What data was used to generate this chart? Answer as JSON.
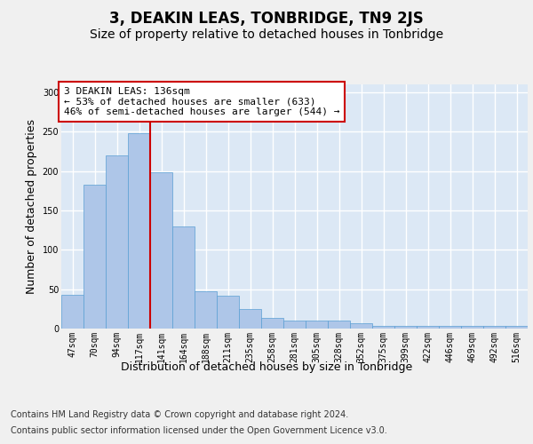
{
  "title": "3, DEAKIN LEAS, TONBRIDGE, TN9 2JS",
  "subtitle": "Size of property relative to detached houses in Tonbridge",
  "xlabel": "Distribution of detached houses by size in Tonbridge",
  "ylabel": "Number of detached properties",
  "categories": [
    "47sqm",
    "70sqm",
    "94sqm",
    "117sqm",
    "141sqm",
    "164sqm",
    "188sqm",
    "211sqm",
    "235sqm",
    "258sqm",
    "281sqm",
    "305sqm",
    "328sqm",
    "352sqm",
    "375sqm",
    "399sqm",
    "422sqm",
    "446sqm",
    "469sqm",
    "492sqm",
    "516sqm"
  ],
  "values": [
    43,
    183,
    220,
    248,
    198,
    130,
    47,
    42,
    25,
    14,
    10,
    10,
    10,
    7,
    3,
    3,
    3,
    3,
    3,
    3,
    3
  ],
  "bar_color": "#aec6e8",
  "bar_edge_color": "#5a9fd4",
  "background_color": "#dce8f5",
  "grid_color": "#ffffff",
  "fig_background_color": "#f0f0f0",
  "annotation_box_text": "3 DEAKIN LEAS: 136sqm\n← 53% of detached houses are smaller (633)\n46% of semi-detached houses are larger (544) →",
  "annotation_box_color": "#ffffff",
  "annotation_box_edge_color": "#cc0000",
  "vline_x_index": 3.5,
  "vline_color": "#cc0000",
  "ylim": [
    0,
    310
  ],
  "footer_line1": "Contains HM Land Registry data © Crown copyright and database right 2024.",
  "footer_line2": "Contains public sector information licensed under the Open Government Licence v3.0.",
  "title_fontsize": 12,
  "subtitle_fontsize": 10,
  "axis_label_fontsize": 9,
  "tick_fontsize": 7,
  "annotation_fontsize": 8,
  "footer_fontsize": 7
}
